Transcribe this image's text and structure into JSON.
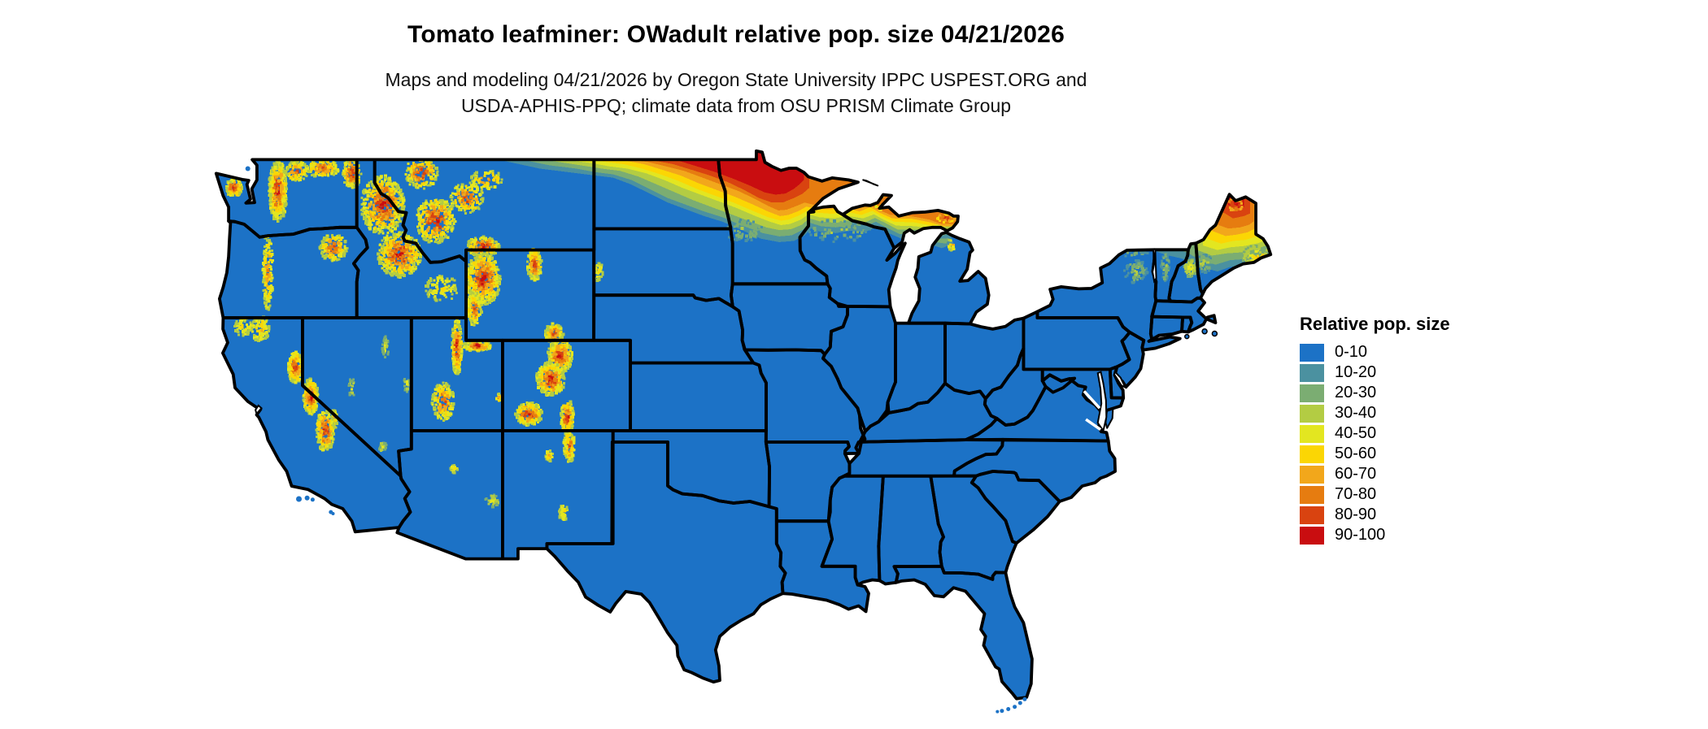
{
  "title": "Tomato leafminer: OWadult relative pop. size 04/21/2026",
  "subtitle": {
    "line1": "Maps and modeling 04/21/2026 by Oregon State University IPPC USPEST.ORG and",
    "line2": "USDA-APHIS-PPQ; climate data from OSU PRISM Climate Group"
  },
  "legend": {
    "title": "Relative pop. size",
    "items": [
      {
        "label": "0-10",
        "color": "#1c72c6"
      },
      {
        "label": "10-20",
        "color": "#4b91a0"
      },
      {
        "label": "20-30",
        "color": "#7bad72"
      },
      {
        "label": "30-40",
        "color": "#b3cc43"
      },
      {
        "label": "40-50",
        "color": "#e3e620"
      },
      {
        "label": "50-60",
        "color": "#fbd604"
      },
      {
        "label": "60-70",
        "color": "#f2a71b"
      },
      {
        "label": "70-80",
        "color": "#e67c10"
      },
      {
        "label": "80-90",
        "color": "#d94310"
      },
      {
        "label": "90-100",
        "color": "#c90d10"
      }
    ]
  },
  "map": {
    "border_color": "#000000",
    "water_color": "#ffffff"
  }
}
